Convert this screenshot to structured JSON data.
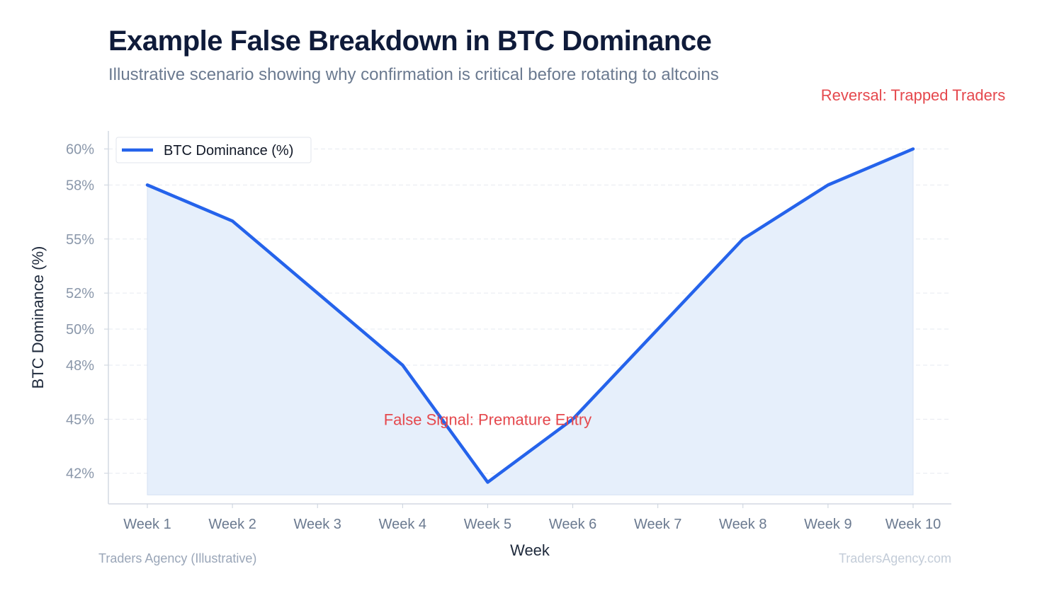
{
  "header": {
    "title": "Example False Breakdown in BTC Dominance",
    "subtitle": "Illustrative scenario showing why confirmation is critical before rotating to altcoins"
  },
  "footer": {
    "source": "Traders Agency (Illustrative)",
    "watermark": "TradersAgency.com"
  },
  "chart_data": {
    "type": "area",
    "categories": [
      "Week 1",
      "Week 2",
      "Week 3",
      "Week 4",
      "Week 5",
      "Week 6",
      "Week 7",
      "Week 8",
      "Week 9",
      "Week 10"
    ],
    "series": [
      {
        "name": "BTC Dominance (%)",
        "values": [
          58,
          56,
          52,
          48,
          41.5,
          45,
          50,
          55,
          58,
          60
        ],
        "color": "#2563eb",
        "fill": "#e6effb"
      }
    ],
    "xlabel": "Week",
    "ylabel": "BTC Dominance (%)",
    "ylim": [
      40.3,
      61
    ],
    "yticks": [
      42,
      45,
      48,
      50,
      52,
      55,
      58,
      60
    ],
    "ytick_labels": [
      "42%",
      "45%",
      "48%",
      "50%",
      "52%",
      "55%",
      "58%",
      "60%"
    ],
    "fill_baseline": 40.8,
    "grid": true,
    "legend": "top-left",
    "annotations": [
      {
        "text": "False Signal: Premature Entry",
        "x": "Week 5",
        "y": 45,
        "color": "#e5484d"
      },
      {
        "text": "Reversal: Trapped Traders",
        "x": "Week 10",
        "y": 63,
        "color": "#e5484d"
      }
    ]
  }
}
